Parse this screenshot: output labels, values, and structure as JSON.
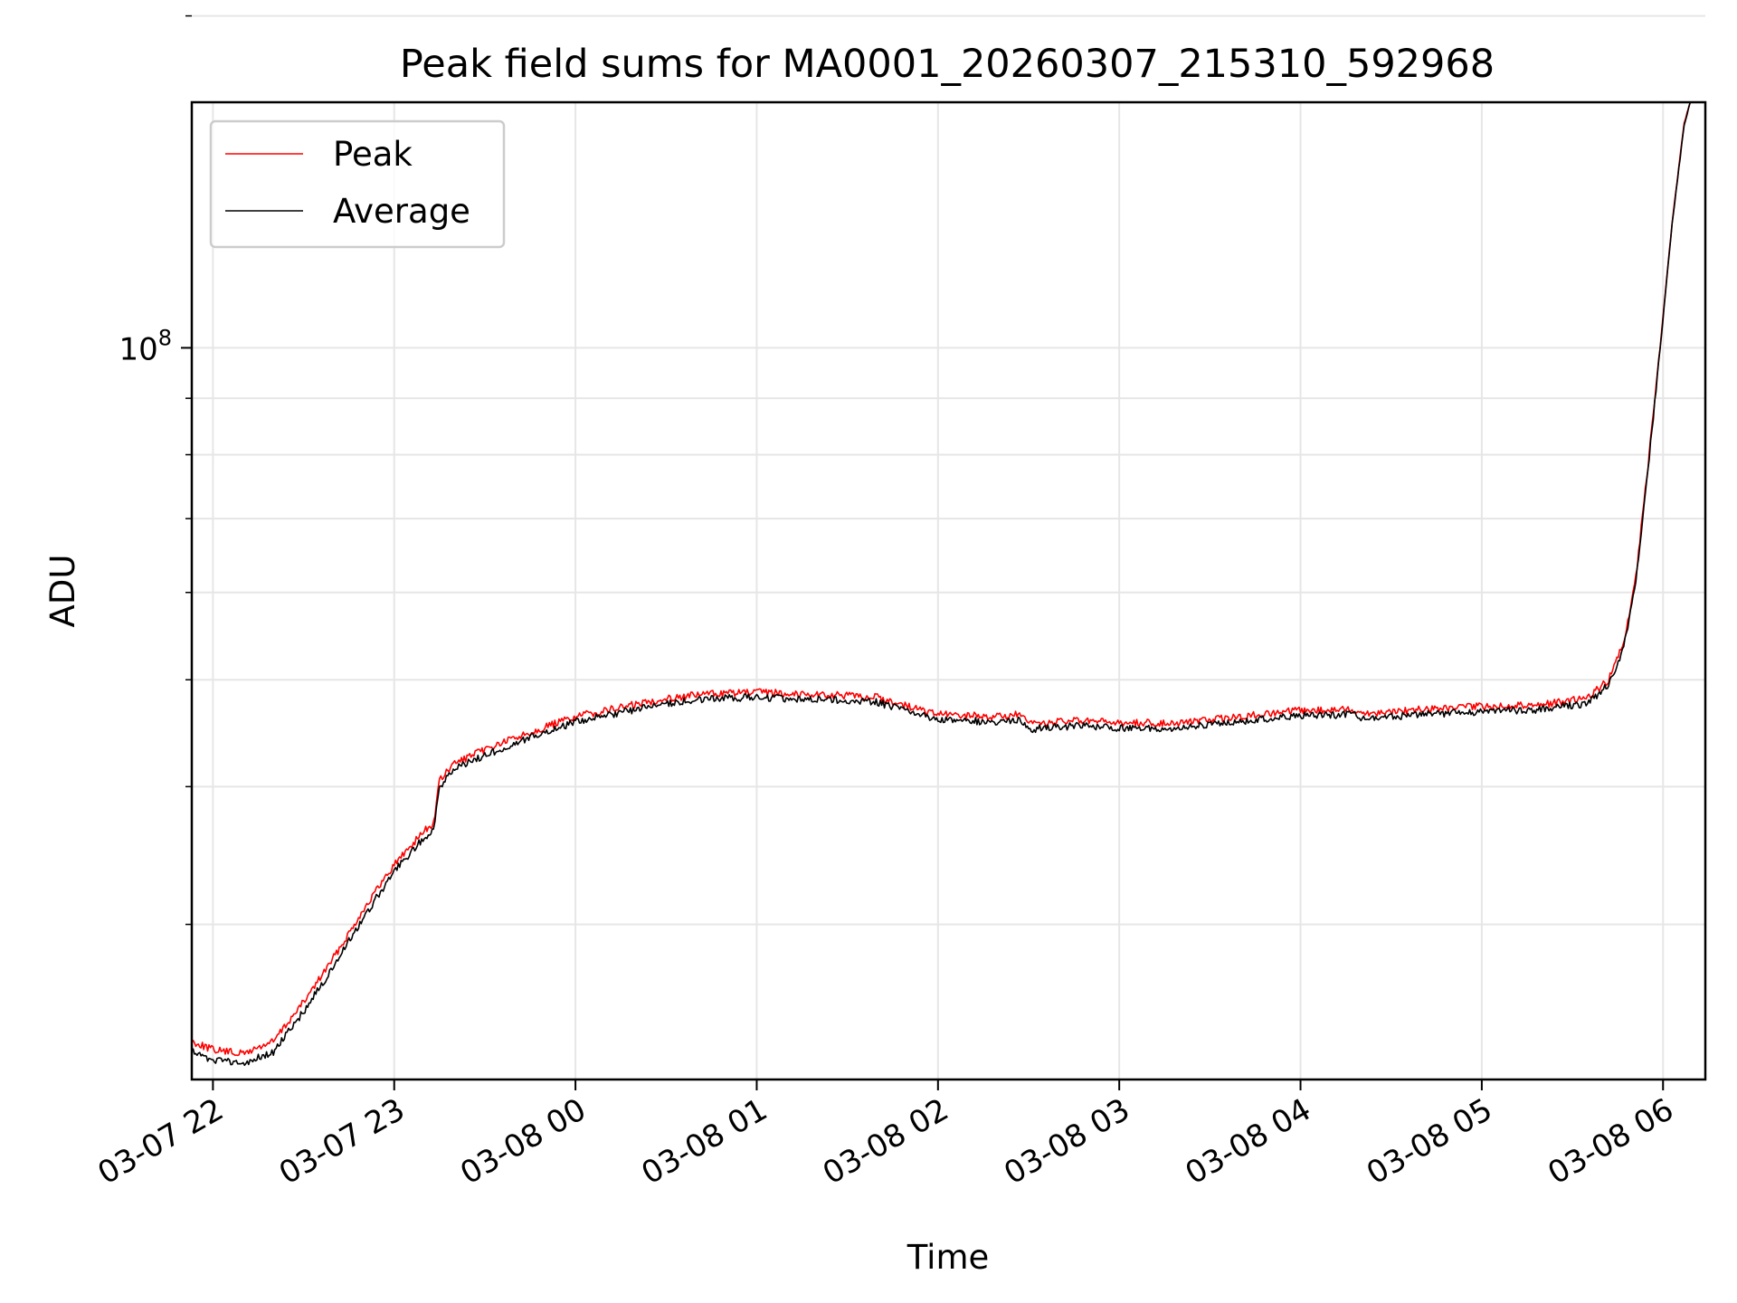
{
  "chart_data": {
    "type": "line",
    "title": "Peak field sums for MA0001_20260307_215310_592968",
    "xlabel": "Time",
    "ylabel": "ADU",
    "x_range": [
      "2026-03-07 21:53",
      "2026-03-08 06:14"
    ],
    "yscale": "log",
    "ylim": [
      21700000,
      167000000
    ],
    "y_ticks": [
      {
        "value": 100000000,
        "base": "10",
        "exp": "8"
      }
    ],
    "y_minor_ticks": [
      30000000,
      40000000,
      50000000,
      60000000,
      70000000,
      80000000,
      90000000,
      200000000
    ],
    "x_ticks": [
      {
        "value": "2026-03-07 22:00",
        "label": "03-07 22"
      },
      {
        "value": "2026-03-07 23:00",
        "label": "03-07 23"
      },
      {
        "value": "2026-03-08 00:00",
        "label": "03-08 00"
      },
      {
        "value": "2026-03-08 01:00",
        "label": "03-08 01"
      },
      {
        "value": "2026-03-08 02:00",
        "label": "03-08 02"
      },
      {
        "value": "2026-03-08 03:00",
        "label": "03-08 03"
      },
      {
        "value": "2026-03-08 04:00",
        "label": "03-08 04"
      },
      {
        "value": "2026-03-08 05:00",
        "label": "03-08 05"
      },
      {
        "value": "2026-03-08 06:00",
        "label": "03-08 06"
      }
    ],
    "grid": true,
    "legend": "top-left",
    "series": [
      {
        "name": "Peak",
        "color": "#ff0000",
        "points": [
          [
            "2026-03-07 21:53",
            23500000
          ],
          [
            "2026-03-07 22:00",
            23100000
          ],
          [
            "2026-03-07 22:10",
            22900000
          ],
          [
            "2026-03-07 22:20",
            23500000
          ],
          [
            "2026-03-07 22:30",
            25500000
          ],
          [
            "2026-03-07 22:40",
            28000000
          ],
          [
            "2026-03-07 22:50",
            31000000
          ],
          [
            "2026-03-07 23:00",
            34000000
          ],
          [
            "2026-03-07 23:10",
            36500000
          ],
          [
            "2026-03-07 23:13",
            37000000
          ],
          [
            "2026-03-07 23:15",
            40500000
          ],
          [
            "2026-03-07 23:20",
            42000000
          ],
          [
            "2026-03-07 23:30",
            43200000
          ],
          [
            "2026-03-07 23:40",
            44300000
          ],
          [
            "2026-03-07 23:50",
            45300000
          ],
          [
            "2026-03-08 00:00",
            46300000
          ],
          [
            "2026-03-08 00:15",
            47200000
          ],
          [
            "2026-03-08 00:30",
            48100000
          ],
          [
            "2026-03-08 00:45",
            48600000
          ],
          [
            "2026-03-08 01:00",
            48700000
          ],
          [
            "2026-03-08 01:20",
            48500000
          ],
          [
            "2026-03-08 01:40",
            48200000
          ],
          [
            "2026-03-08 01:50",
            47300000
          ],
          [
            "2026-03-08 02:00",
            46500000
          ],
          [
            "2026-03-08 02:20",
            46300000
          ],
          [
            "2026-03-08 02:27",
            46500000
          ],
          [
            "2026-03-08 02:30",
            45600000
          ],
          [
            "2026-03-08 02:45",
            45900000
          ],
          [
            "2026-03-08 03:00",
            45700000
          ],
          [
            "2026-03-08 03:20",
            45700000
          ],
          [
            "2026-03-08 03:40",
            46300000
          ],
          [
            "2026-03-08 04:00",
            46900000
          ],
          [
            "2026-03-08 04:18",
            47000000
          ],
          [
            "2026-03-08 04:20",
            46600000
          ],
          [
            "2026-03-08 04:40",
            47000000
          ],
          [
            "2026-03-08 05:00",
            47300000
          ],
          [
            "2026-03-08 05:20",
            47500000
          ],
          [
            "2026-03-08 05:35",
            48100000
          ],
          [
            "2026-03-08 05:42",
            50000000
          ],
          [
            "2026-03-08 05:47",
            54000000
          ],
          [
            "2026-03-08 05:51",
            62000000
          ],
          [
            "2026-03-08 05:55",
            78000000
          ],
          [
            "2026-03-08 05:59",
            100000000
          ],
          [
            "2026-03-08 06:03",
            130000000
          ],
          [
            "2026-03-08 06:07",
            160000000
          ],
          [
            "2026-03-08 06:09",
            167000000
          ]
        ]
      },
      {
        "name": "Average",
        "color": "#000000",
        "points": [
          [
            "2026-03-07 21:53",
            23000000
          ],
          [
            "2026-03-07 22:00",
            22600000
          ],
          [
            "2026-03-07 22:10",
            22400000
          ],
          [
            "2026-03-07 22:20",
            23000000
          ],
          [
            "2026-03-07 22:30",
            25000000
          ],
          [
            "2026-03-07 22:40",
            27500000
          ],
          [
            "2026-03-07 22:50",
            30500000
          ],
          [
            "2026-03-07 23:00",
            33500000
          ],
          [
            "2026-03-07 23:10",
            36000000
          ],
          [
            "2026-03-07 23:13",
            36500000
          ],
          [
            "2026-03-07 23:15",
            40000000
          ],
          [
            "2026-03-07 23:20",
            41500000
          ],
          [
            "2026-03-07 23:30",
            42700000
          ],
          [
            "2026-03-07 23:40",
            43800000
          ],
          [
            "2026-03-07 23:50",
            44800000
          ],
          [
            "2026-03-08 00:00",
            45800000
          ],
          [
            "2026-03-08 00:15",
            46700000
          ],
          [
            "2026-03-08 00:30",
            47600000
          ],
          [
            "2026-03-08 00:45",
            48100000
          ],
          [
            "2026-03-08 01:00",
            48200000
          ],
          [
            "2026-03-08 01:20",
            48000000
          ],
          [
            "2026-03-08 01:40",
            47700000
          ],
          [
            "2026-03-08 01:50",
            46800000
          ],
          [
            "2026-03-08 02:00",
            46000000
          ],
          [
            "2026-03-08 02:20",
            45800000
          ],
          [
            "2026-03-08 02:27",
            46000000
          ],
          [
            "2026-03-08 02:30",
            45100000
          ],
          [
            "2026-03-08 02:45",
            45400000
          ],
          [
            "2026-03-08 03:00",
            45200000
          ],
          [
            "2026-03-08 03:20",
            45200000
          ],
          [
            "2026-03-08 03:40",
            45800000
          ],
          [
            "2026-03-08 04:00",
            46400000
          ],
          [
            "2026-03-08 04:18",
            46500000
          ],
          [
            "2026-03-08 04:20",
            46100000
          ],
          [
            "2026-03-08 04:40",
            46500000
          ],
          [
            "2026-03-08 05:00",
            46800000
          ],
          [
            "2026-03-08 05:20",
            47000000
          ],
          [
            "2026-03-08 05:35",
            47600000
          ],
          [
            "2026-03-08 05:42",
            49500000
          ],
          [
            "2026-03-08 05:47",
            53500000
          ],
          [
            "2026-03-08 05:51",
            61500000
          ],
          [
            "2026-03-08 05:55",
            77500000
          ],
          [
            "2026-03-08 05:59",
            99500000
          ],
          [
            "2026-03-08 06:03",
            129500000
          ],
          [
            "2026-03-08 06:07",
            159500000
          ],
          [
            "2026-03-08 06:09",
            167000000
          ]
        ]
      }
    ]
  }
}
